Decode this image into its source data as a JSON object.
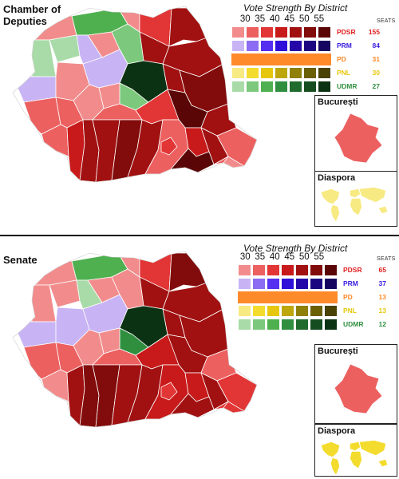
{
  "colors": {
    "PDSR": [
      "#f28c8c",
      "#ec6060",
      "#e23535",
      "#c81a1a",
      "#a11111",
      "#820b0b",
      "#5a0606"
    ],
    "PRM": [
      "#c8b4f5",
      "#8c6cf2",
      "#5530f0",
      "#2e10d8",
      "#2408a8",
      "#1c0780",
      "#150560"
    ],
    "PD": "#ff8a29",
    "PNL": [
      "#f7ea82",
      "#f3dc2e",
      "#e6c70e",
      "#bda70c",
      "#8f8009",
      "#6b5f06",
      "#4a4204"
    ],
    "UDMR": [
      "#a8dba8",
      "#7cc87c",
      "#4fb04f",
      "#2f8f3f",
      "#1f6a2d",
      "#154d20",
      "#0c3214"
    ],
    "party_text": {
      "PDSR": "#e02020",
      "PRM": "#3a1ee0",
      "PD": "#ff8a29",
      "PNL": "#e8c80c",
      "UDMR": "#2f8f3f"
    }
  },
  "chamber": {
    "title": "Chamber of Deputies",
    "legend_title": "Vote Strength By District",
    "ticks": [
      "30",
      "35",
      "40",
      "45",
      "50",
      "55"
    ],
    "seats_header": "SEATS",
    "parties": [
      {
        "name": "PDSR",
        "seats": "155"
      },
      {
        "name": "PRM",
        "seats": "84"
      },
      {
        "name": "PD",
        "seats": "31"
      },
      {
        "name": "PNL",
        "seats": "30"
      },
      {
        "name": "UDMR",
        "seats": "27"
      }
    ],
    "bucharest_label": "București",
    "diaspora_label": "Diaspora"
  },
  "senate": {
    "title": "Senate",
    "legend_title": "Vote Strength By District",
    "ticks": [
      "30",
      "35",
      "40",
      "45",
      "50",
      "55"
    ],
    "seats_header": "SEATS",
    "parties": [
      {
        "name": "PDSR",
        "seats": "65"
      },
      {
        "name": "PRM",
        "seats": "37"
      },
      {
        "name": "PD",
        "seats": "13"
      },
      {
        "name": "PNL",
        "seats": "13"
      },
      {
        "name": "UDMR",
        "seats": "12"
      }
    ],
    "bucharest_label": "București",
    "diaspora_label": "Diaspora"
  }
}
